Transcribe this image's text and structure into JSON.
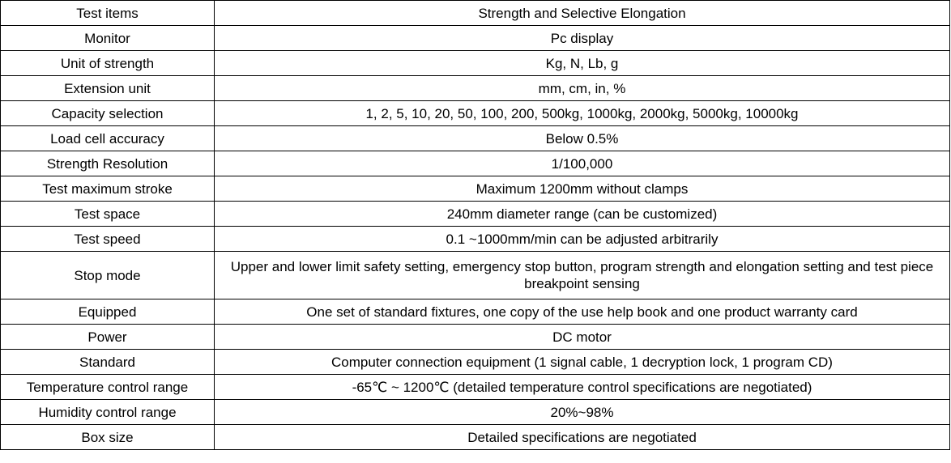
{
  "table": {
    "rows": [
      [
        "Test items",
        "Strength and Selective Elongation"
      ],
      [
        "Monitor",
        "Pc display"
      ],
      [
        "Unit of strength",
        "Kg, N, Lb, g"
      ],
      [
        "Extension unit",
        "mm, cm, in, %"
      ],
      [
        "Capacity selection",
        "1, 2, 5, 10, 20, 50, 100, 200, 500kg, 1000kg, 2000kg, 5000kg, 10000kg"
      ],
      [
        "Load cell accuracy",
        "Below 0.5%"
      ],
      [
        "Strength Resolution",
        "1/100,000"
      ],
      [
        "Test maximum stroke",
        "Maximum 1200mm without clamps"
      ],
      [
        "Test space",
        "240mm diameter range (can be customized)"
      ],
      [
        "Test speed",
        "0.1 ~1000mm/min can be adjusted arbitrarily"
      ],
      [
        "Stop mode",
        "Upper and lower limit safety setting, emergency stop button, program strength and elongation setting and test piece breakpoint sensing"
      ],
      [
        "Equipped",
        "One set of standard fixtures, one copy of the use help book and one product warranty card"
      ],
      [
        "Power",
        "DC motor"
      ],
      [
        "Standard",
        "Computer connection equipment (1 signal cable, 1 decryption lock, 1 program CD)"
      ],
      [
        "Temperature control range",
        "-65℃ ~ 1200℃ (detailed temperature control specifications are negotiated)"
      ],
      [
        "Humidity control range",
        "20%~98%"
      ],
      [
        "Box size",
        "Detailed specifications are negotiated"
      ]
    ]
  }
}
